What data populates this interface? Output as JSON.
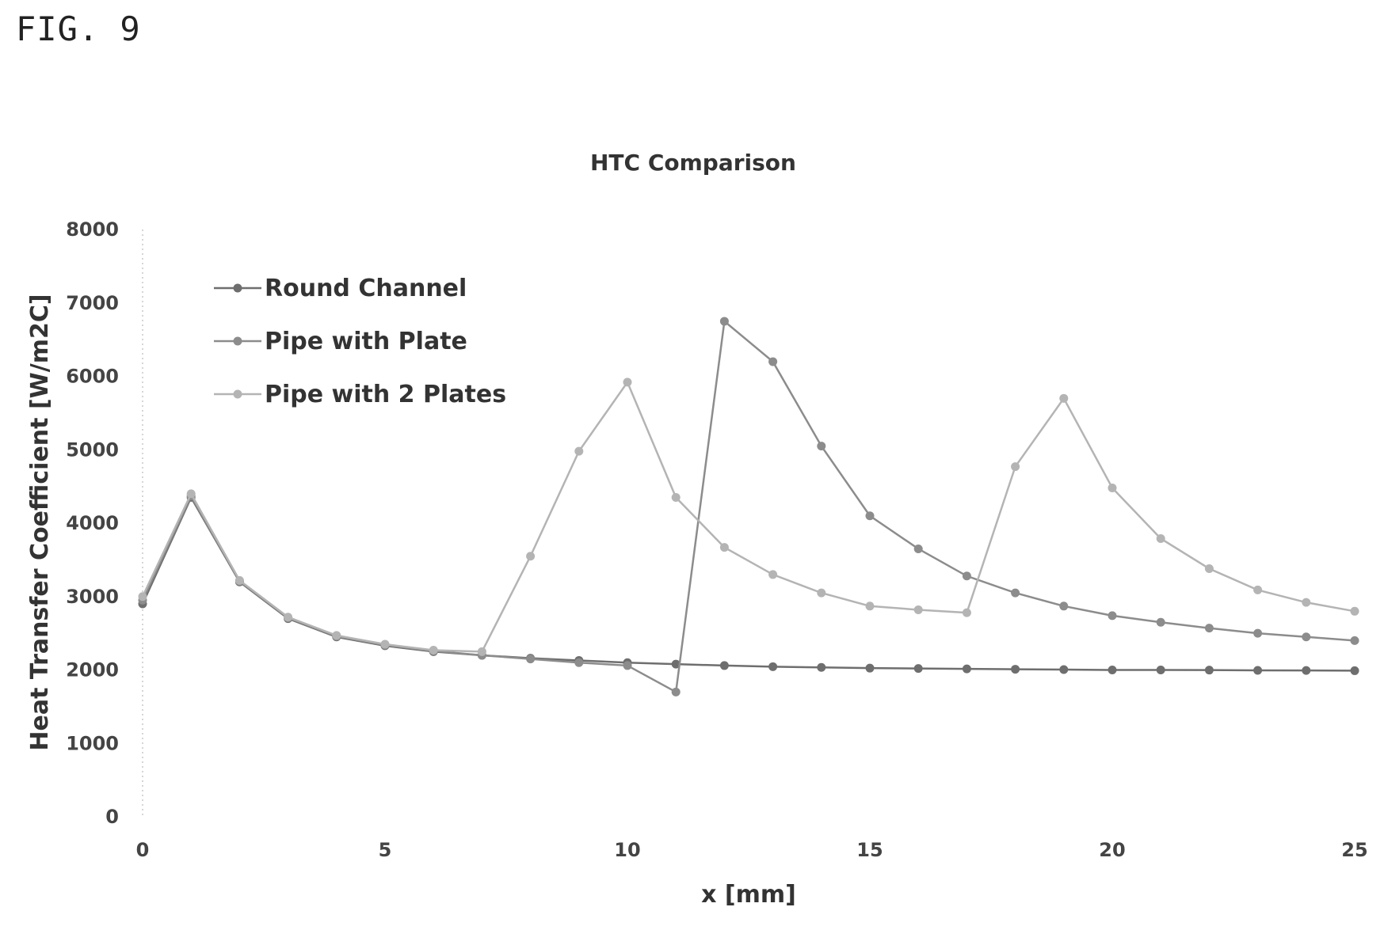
{
  "figure_label": "FIG. 9",
  "chart_data": {
    "type": "line",
    "title": "HTC Comparison",
    "xlabel": "x [mm]",
    "ylabel": "Heat Transfer Coefficient [W/m2C]",
    "xlim": [
      0,
      25
    ],
    "ylim": [
      0,
      8000
    ],
    "x_ticks": [
      0,
      5,
      10,
      15,
      20,
      25
    ],
    "y_ticks": [
      0,
      1000,
      2000,
      3000,
      4000,
      5000,
      6000,
      7000,
      8000
    ],
    "legend_position": "top-left",
    "grid": false,
    "x": [
      0,
      1,
      2,
      3,
      4,
      5,
      6,
      7,
      8,
      9,
      10,
      11,
      12,
      13,
      14,
      15,
      16,
      17,
      18,
      19,
      20,
      21,
      22,
      23,
      24,
      25
    ],
    "series": [
      {
        "name": "Round Channel",
        "color": "#6e6e6e",
        "values": [
          2900,
          4350,
          3200,
          2700,
          2450,
          2330,
          2250,
          2200,
          2160,
          2130,
          2100,
          2080,
          2060,
          2045,
          2035,
          2025,
          2020,
          2015,
          2010,
          2005,
          2000,
          2000,
          1998,
          1995,
          1993,
          1990
        ]
      },
      {
        "name": "Pipe with Plate",
        "color": "#8c8c8c",
        "values": [
          2950,
          4370,
          3210,
          2710,
          2460,
          2340,
          2260,
          2200,
          2150,
          2100,
          2060,
          1700,
          6750,
          6200,
          5050,
          4100,
          3650,
          3280,
          3050,
          2870,
          2740,
          2650,
          2570,
          2500,
          2450,
          2400
        ]
      },
      {
        "name": "Pipe with 2 Plates",
        "color": "#b4b4b4",
        "values": [
          3000,
          4400,
          3220,
          2720,
          2470,
          2350,
          2270,
          2250,
          3550,
          4980,
          5920,
          4350,
          3670,
          3300,
          3050,
          2870,
          2820,
          2780,
          4770,
          5700,
          4480,
          3790,
          3380,
          3090,
          2920,
          2800
        ]
      }
    ]
  }
}
